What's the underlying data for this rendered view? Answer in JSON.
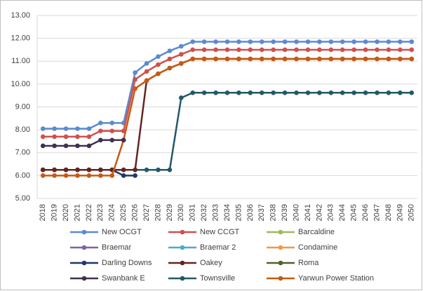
{
  "chart_data": {
    "type": "line",
    "categories": [
      "2018",
      "2019",
      "2020",
      "2021",
      "2022",
      "2023",
      "2024",
      "2025",
      "2026",
      "2027",
      "2028",
      "2029",
      "2030",
      "2031",
      "2032",
      "2033",
      "2034",
      "2035",
      "2036",
      "2037",
      "2038",
      "2039",
      "2040",
      "2041",
      "2042",
      "2043",
      "2044",
      "2045",
      "2046",
      "2047",
      "2048",
      "2049",
      "2050"
    ],
    "ylim": [
      5,
      13
    ],
    "yticks": [
      {
        "value": 5,
        "label": "5.00"
      },
      {
        "value": 6,
        "label": "6.00"
      },
      {
        "value": 7,
        "label": "7.00"
      },
      {
        "value": 8,
        "label": "8.00"
      },
      {
        "value": 9,
        "label": "9.00"
      },
      {
        "value": 10,
        "label": "10.00"
      },
      {
        "value": 11,
        "label": "11.00"
      },
      {
        "value": 12,
        "label": "12.00"
      },
      {
        "value": 13,
        "label": "13.00"
      }
    ],
    "grid": true,
    "series": [
      {
        "name": "New OCGT",
        "color": "#5b8bd0",
        "values": [
          8.05,
          8.05,
          8.05,
          8.05,
          8.05,
          8.3,
          8.3,
          8.3,
          10.5,
          10.9,
          11.2,
          11.45,
          11.65,
          11.85,
          11.85,
          11.85,
          11.85,
          11.85,
          11.85,
          11.85,
          11.85,
          11.85,
          11.85,
          11.85,
          11.85,
          11.85,
          11.85,
          11.85,
          11.85,
          11.85,
          11.85,
          11.85,
          11.85
        ]
      },
      {
        "name": "New CCGT",
        "color": "#d0504d",
        "values": [
          7.7,
          7.7,
          7.7,
          7.7,
          7.7,
          7.95,
          7.95,
          7.95,
          10.2,
          10.55,
          10.85,
          11.1,
          11.3,
          11.5,
          11.5,
          11.5,
          11.5,
          11.5,
          11.5,
          11.5,
          11.5,
          11.5,
          11.5,
          11.5,
          11.5,
          11.5,
          11.5,
          11.5,
          11.5,
          11.5,
          11.5,
          11.5,
          11.5
        ]
      },
      {
        "name": "Barcaldine",
        "color": "#9bbb59",
        "values": [
          null,
          null,
          null,
          null,
          null,
          null,
          null,
          null,
          null,
          null,
          null,
          null,
          null,
          null,
          null,
          null,
          null,
          null,
          null,
          null,
          null,
          null,
          null,
          null,
          null,
          null,
          null,
          null,
          null,
          null,
          null,
          null,
          null
        ]
      },
      {
        "name": "Braemar",
        "color": "#8064a2",
        "values": [
          null,
          null,
          null,
          null,
          null,
          null,
          null,
          null,
          null,
          null,
          null,
          null,
          null,
          null,
          null,
          null,
          null,
          null,
          null,
          null,
          null,
          null,
          null,
          null,
          null,
          null,
          null,
          null,
          null,
          null,
          null,
          null,
          null
        ]
      },
      {
        "name": "Braemar 2",
        "color": "#4bacc6",
        "values": [
          null,
          null,
          null,
          null,
          null,
          null,
          null,
          null,
          null,
          null,
          null,
          null,
          null,
          null,
          null,
          null,
          null,
          null,
          null,
          null,
          null,
          null,
          null,
          null,
          null,
          null,
          null,
          null,
          null,
          null,
          null,
          null,
          null
        ]
      },
      {
        "name": "Condamine",
        "color": "#f79646",
        "values": [
          null,
          null,
          null,
          null,
          null,
          null,
          null,
          null,
          null,
          null,
          null,
          null,
          null,
          null,
          null,
          null,
          null,
          null,
          null,
          null,
          null,
          null,
          null,
          null,
          null,
          null,
          null,
          null,
          null,
          null,
          null,
          null,
          null
        ]
      },
      {
        "name": "Darling Downs",
        "color": "#1f3864",
        "values": [
          6.25,
          6.25,
          6.25,
          6.25,
          6.25,
          6.25,
          6.25,
          6.0,
          6.0,
          null,
          null,
          null,
          null,
          null,
          null,
          null,
          null,
          null,
          null,
          null,
          null,
          null,
          null,
          null,
          null,
          null,
          null,
          null,
          null,
          null,
          null,
          null,
          null
        ]
      },
      {
        "name": "Oakey",
        "color": "#632523",
        "values": [
          6.25,
          6.25,
          6.25,
          6.25,
          6.25,
          6.25,
          6.25,
          6.25,
          6.25,
          10.15,
          10.45,
          10.7,
          10.9,
          11.1,
          11.1,
          11.1,
          11.1,
          11.1,
          11.1,
          11.1,
          11.1,
          11.1,
          11.1,
          11.1,
          11.1,
          11.1,
          11.1,
          11.1,
          11.1,
          11.1,
          11.1,
          11.1,
          11.1
        ]
      },
      {
        "name": "Roma",
        "color": "#4f6228",
        "values": [
          null,
          null,
          null,
          null,
          null,
          null,
          null,
          null,
          null,
          null,
          null,
          null,
          null,
          null,
          null,
          null,
          null,
          null,
          null,
          null,
          null,
          null,
          null,
          null,
          null,
          null,
          null,
          null,
          null,
          null,
          null,
          null,
          null
        ]
      },
      {
        "name": "Swanbank E",
        "color": "#3f3151",
        "values": [
          7.3,
          7.3,
          7.3,
          7.3,
          7.3,
          7.55,
          7.55,
          7.55,
          null,
          null,
          null,
          null,
          null,
          null,
          null,
          null,
          null,
          null,
          null,
          null,
          null,
          null,
          null,
          null,
          null,
          null,
          null,
          null,
          null,
          null,
          null,
          null,
          null
        ]
      },
      {
        "name": "Townsville",
        "color": "#215968",
        "values": [
          6.25,
          6.25,
          6.25,
          6.25,
          6.25,
          6.25,
          6.25,
          6.25,
          6.25,
          6.25,
          6.25,
          6.25,
          9.4,
          9.62,
          9.62,
          9.62,
          9.62,
          9.62,
          9.62,
          9.62,
          9.62,
          9.62,
          9.62,
          9.62,
          9.62,
          9.62,
          9.62,
          9.62,
          9.62,
          9.62,
          9.62,
          9.62,
          9.62
        ]
      },
      {
        "name": "Yarwun Power Station",
        "color": "#c55a11",
        "values": [
          6.0,
          6.0,
          6.0,
          6.0,
          6.0,
          6.0,
          6.0,
          7.55,
          9.8,
          10.15,
          10.45,
          10.7,
          10.9,
          11.1,
          11.1,
          11.1,
          11.1,
          11.1,
          11.1,
          11.1,
          11.1,
          11.1,
          11.1,
          11.1,
          11.1,
          11.1,
          11.1,
          11.1,
          11.1,
          11.1,
          11.1,
          11.1,
          11.1
        ]
      }
    ]
  }
}
